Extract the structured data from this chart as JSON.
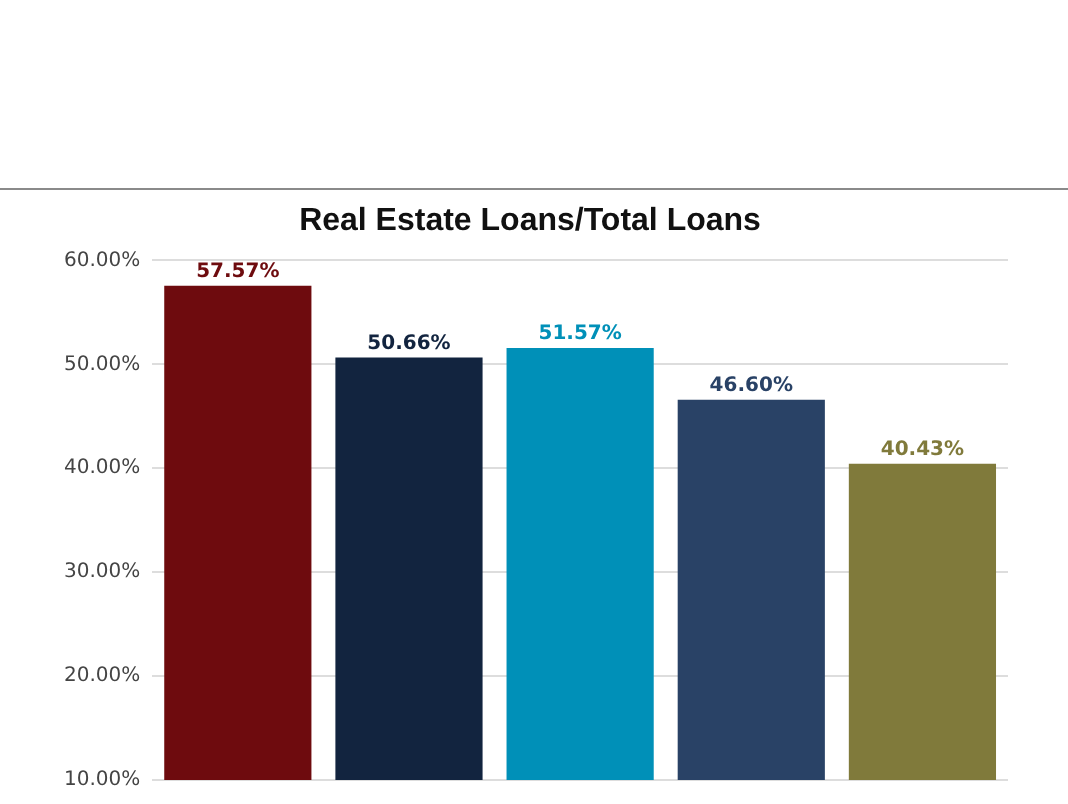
{
  "chart_data": {
    "type": "bar",
    "title": "Real Estate Loans/Total Loans",
    "categories": [
      null,
      null,
      null,
      null,
      null
    ],
    "values": [
      57.57,
      50.66,
      51.57,
      46.6,
      40.43
    ],
    "colors": [
      "#6e0b0e",
      "#12243f",
      "#0090b8",
      "#294266",
      "#807a3b"
    ],
    "value_labels": [
      "57.57%",
      "50.66%",
      "51.57%",
      "46.60%",
      "40.43%"
    ],
    "ylim": [
      10,
      60
    ],
    "yticks": [
      {
        "value": 10,
        "label": "10.00%"
      },
      {
        "value": 20,
        "label": "20.00%"
      },
      {
        "value": 30,
        "label": "30.00%"
      },
      {
        "value": 40,
        "label": "40.00%"
      },
      {
        "value": 50,
        "label": "50.00%"
      },
      {
        "value": 60,
        "label": "60.00%"
      }
    ],
    "grid": "y",
    "tick_labels": "y",
    "legend": false
  }
}
